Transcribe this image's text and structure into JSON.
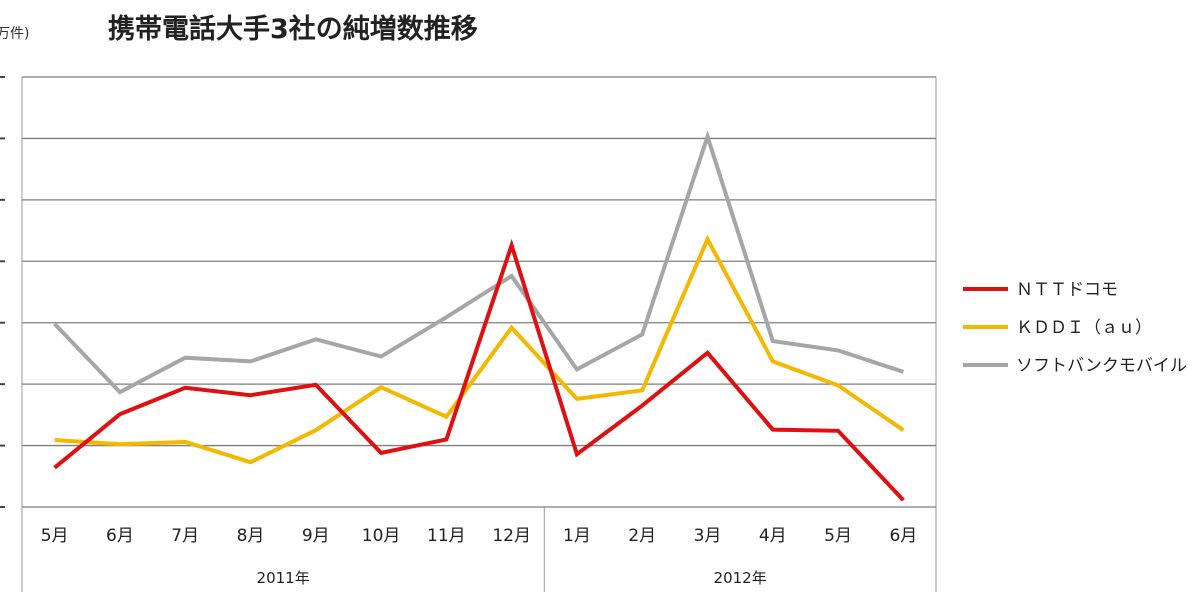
{
  "chart_data": {
    "type": "line",
    "title": "携帯電話大手3社の純増数推移",
    "unit_label": "万件)",
    "categories": [
      "5月",
      "6月",
      "7月",
      "8月",
      "9月",
      "10月",
      "11月",
      "12月",
      "1月",
      "2月",
      "3月",
      "4月",
      "5月",
      "6月"
    ],
    "groups": [
      {
        "label": "2011年",
        "span": [
          0,
          7
        ]
      },
      {
        "label": "2012年",
        "span": [
          8,
          13
        ]
      }
    ],
    "ylim": [
      0,
      70
    ],
    "grid": true,
    "legend_position": "right",
    "series": [
      {
        "name": "ＮＴＴドコモ",
        "color": "#e01010",
        "values": [
          6.4,
          15.1,
          19.4,
          18.2,
          19.9,
          8.8,
          11.0,
          42.6,
          8.6,
          16.5,
          25.1,
          12.6,
          12.4,
          1.1
        ]
      },
      {
        "name": "ＫＤＤＩ（ａｕ）",
        "color": "#f5b800",
        "values": [
          10.9,
          10.2,
          10.6,
          7.3,
          12.5,
          19.5,
          14.7,
          29.2,
          17.6,
          19.0,
          43.6,
          23.7,
          19.8,
          12.5
        ]
      },
      {
        "name": "ソフトバンクモバイル",
        "color": "#a6a6a6",
        "values": [
          29.8,
          18.7,
          24.3,
          23.7,
          27.3,
          24.5,
          30.9,
          37.6,
          22.4,
          28.1,
          60.3,
          27.0,
          25.5,
          22.0
        ]
      }
    ]
  }
}
